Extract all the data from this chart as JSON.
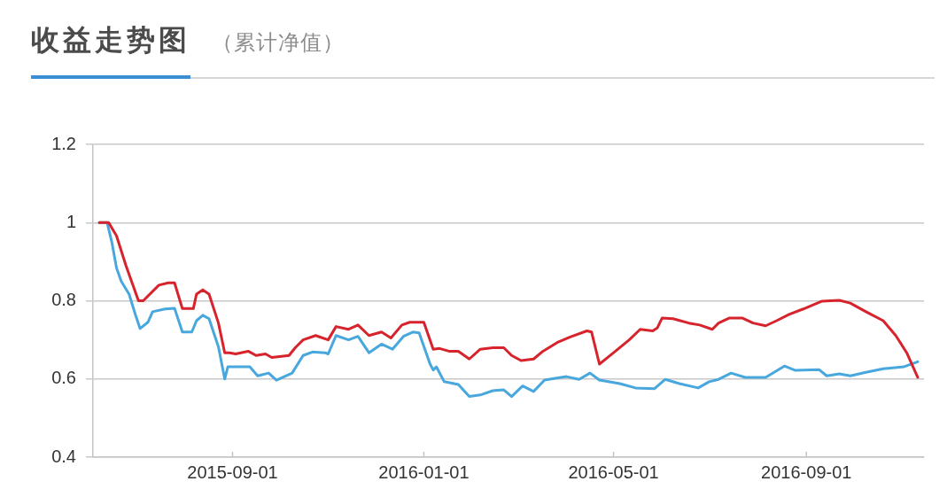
{
  "chart_data": {
    "type": "line",
    "title": "收益走势图",
    "subtitle": "（累计净值）",
    "series": [
      {
        "color": "#d7232c",
        "x": [
          "2015-06-08",
          "2015-06-14",
          "2015-06-19",
          "2015-06-25",
          "2015-07-03",
          "2015-07-06",
          "2015-07-16",
          "2015-07-22",
          "2015-07-26",
          "2015-07-31",
          "2015-08-07",
          "2015-08-09",
          "2015-08-13",
          "2015-08-17",
          "2015-08-23",
          "2015-08-27",
          "2015-08-30",
          "2015-09-03",
          "2015-09-11",
          "2015-09-16",
          "2015-09-22",
          "2015-09-26",
          "2015-10-07",
          "2015-10-11",
          "2015-10-16",
          "2015-10-24",
          "2015-11-01",
          "2015-11-06",
          "2015-11-14",
          "2015-11-20",
          "2015-11-27",
          "2015-12-05",
          "2015-12-11",
          "2015-12-18",
          "2015-12-23",
          "2016-01-01",
          "2016-01-07",
          "2016-01-11",
          "2016-01-17",
          "2016-01-23",
          "2016-01-30",
          "2016-02-06",
          "2016-02-14",
          "2016-02-21",
          "2016-02-26",
          "2016-03-03",
          "2016-03-11",
          "2016-03-17",
          "2016-03-26",
          "2016-04-03",
          "2016-04-14",
          "2016-04-17",
          "2016-04-22",
          "2016-05-01",
          "2016-05-11",
          "2016-05-18",
          "2016-05-26",
          "2016-05-29",
          "2016-06-01",
          "2016-06-08",
          "2016-06-18",
          "2016-06-25",
          "2016-07-03",
          "2016-07-07",
          "2016-07-14",
          "2016-07-22",
          "2016-07-29",
          "2016-08-06",
          "2016-08-13",
          "2016-08-21",
          "2016-08-30",
          "2016-09-11",
          "2016-09-22",
          "2016-09-29",
          "2016-10-09",
          "2016-10-20",
          "2016-10-28",
          "2016-11-04",
          "2016-11-11"
        ],
        "values": [
          1.0,
          1.0,
          0.966,
          0.89,
          0.8,
          0.8,
          0.84,
          0.846,
          0.846,
          0.78,
          0.78,
          0.817,
          0.828,
          0.817,
          0.743,
          0.667,
          0.667,
          0.664,
          0.671,
          0.66,
          0.664,
          0.655,
          0.66,
          0.68,
          0.7,
          0.711,
          0.7,
          0.734,
          0.727,
          0.738,
          0.711,
          0.72,
          0.705,
          0.738,
          0.745,
          0.745,
          0.676,
          0.678,
          0.671,
          0.671,
          0.651,
          0.676,
          0.68,
          0.68,
          0.66,
          0.647,
          0.651,
          0.671,
          0.693,
          0.707,
          0.723,
          0.72,
          0.638,
          0.667,
          0.7,
          0.727,
          0.723,
          0.731,
          0.756,
          0.754,
          0.743,
          0.738,
          0.727,
          0.743,
          0.756,
          0.756,
          0.743,
          0.736,
          0.749,
          0.765,
          0.779,
          0.799,
          0.801,
          0.794,
          0.772,
          0.749,
          0.711,
          0.667,
          0.604
        ]
      },
      {
        "color": "#48a7dc",
        "x": [
          "2015-06-08",
          "2015-06-13",
          "2015-06-16",
          "2015-06-19",
          "2015-06-22",
          "2015-06-27",
          "2015-07-01",
          "2015-07-04",
          "2015-07-09",
          "2015-07-12",
          "2015-07-20",
          "2015-07-26",
          "2015-07-31",
          "2015-08-06",
          "2015-08-09",
          "2015-08-13",
          "2015-08-17",
          "2015-08-23",
          "2015-08-27",
          "2015-08-29",
          "2015-09-07",
          "2015-09-12",
          "2015-09-17",
          "2015-09-24",
          "2015-09-29",
          "2015-10-09",
          "2015-10-16",
          "2015-10-22",
          "2015-10-30",
          "2015-11-01",
          "2015-11-06",
          "2015-11-14",
          "2015-11-20",
          "2015-11-27",
          "2015-12-05",
          "2015-12-12",
          "2015-12-19",
          "2015-12-25",
          "2015-12-29",
          "2016-01-05",
          "2016-01-07",
          "2016-01-09",
          "2016-01-14",
          "2016-01-23",
          "2016-01-30",
          "2016-02-06",
          "2016-02-14",
          "2016-02-21",
          "2016-02-26",
          "2016-03-04",
          "2016-03-11",
          "2016-03-18",
          "2016-04-01",
          "2016-04-09",
          "2016-04-16",
          "2016-04-22",
          "2016-05-05",
          "2016-05-15",
          "2016-05-27",
          "2016-06-03",
          "2016-06-12",
          "2016-06-24",
          "2016-07-01",
          "2016-07-07",
          "2016-07-15",
          "2016-07-24",
          "2016-08-06",
          "2016-08-18",
          "2016-08-25",
          "2016-09-09",
          "2016-09-14",
          "2016-09-22",
          "2016-09-29",
          "2016-10-09",
          "2016-10-20",
          "2016-11-02",
          "2016-11-11"
        ],
        "values": [
          1.0,
          1.0,
          0.95,
          0.884,
          0.85,
          0.817,
          0.765,
          0.729,
          0.745,
          0.772,
          0.779,
          0.781,
          0.72,
          0.72,
          0.749,
          0.763,
          0.754,
          0.682,
          0.6,
          0.631,
          0.631,
          0.631,
          0.608,
          0.615,
          0.597,
          0.615,
          0.66,
          0.669,
          0.667,
          0.664,
          0.711,
          0.7,
          0.709,
          0.667,
          0.689,
          0.676,
          0.709,
          0.72,
          0.718,
          0.638,
          0.623,
          0.631,
          0.593,
          0.586,
          0.555,
          0.559,
          0.57,
          0.572,
          0.555,
          0.582,
          0.568,
          0.597,
          0.606,
          0.599,
          0.615,
          0.597,
          0.588,
          0.577,
          0.575,
          0.599,
          0.588,
          0.577,
          0.593,
          0.599,
          0.615,
          0.604,
          0.604,
          0.633,
          0.622,
          0.624,
          0.608,
          0.613,
          0.608,
          0.617,
          0.626,
          0.631,
          0.644
        ]
      }
    ],
    "xlim": [
      "2015-06-04",
      "2016-11-15"
    ],
    "xticks": [
      "2015-09-01",
      "2016-01-01",
      "2016-05-01",
      "2016-09-01"
    ],
    "ylim": [
      0.4,
      1.2
    ],
    "yticks": [
      0.4,
      0.6,
      0.8,
      1,
      1.2
    ],
    "grid": "y",
    "legend": false,
    "marker": "none",
    "line_style": "solid"
  }
}
